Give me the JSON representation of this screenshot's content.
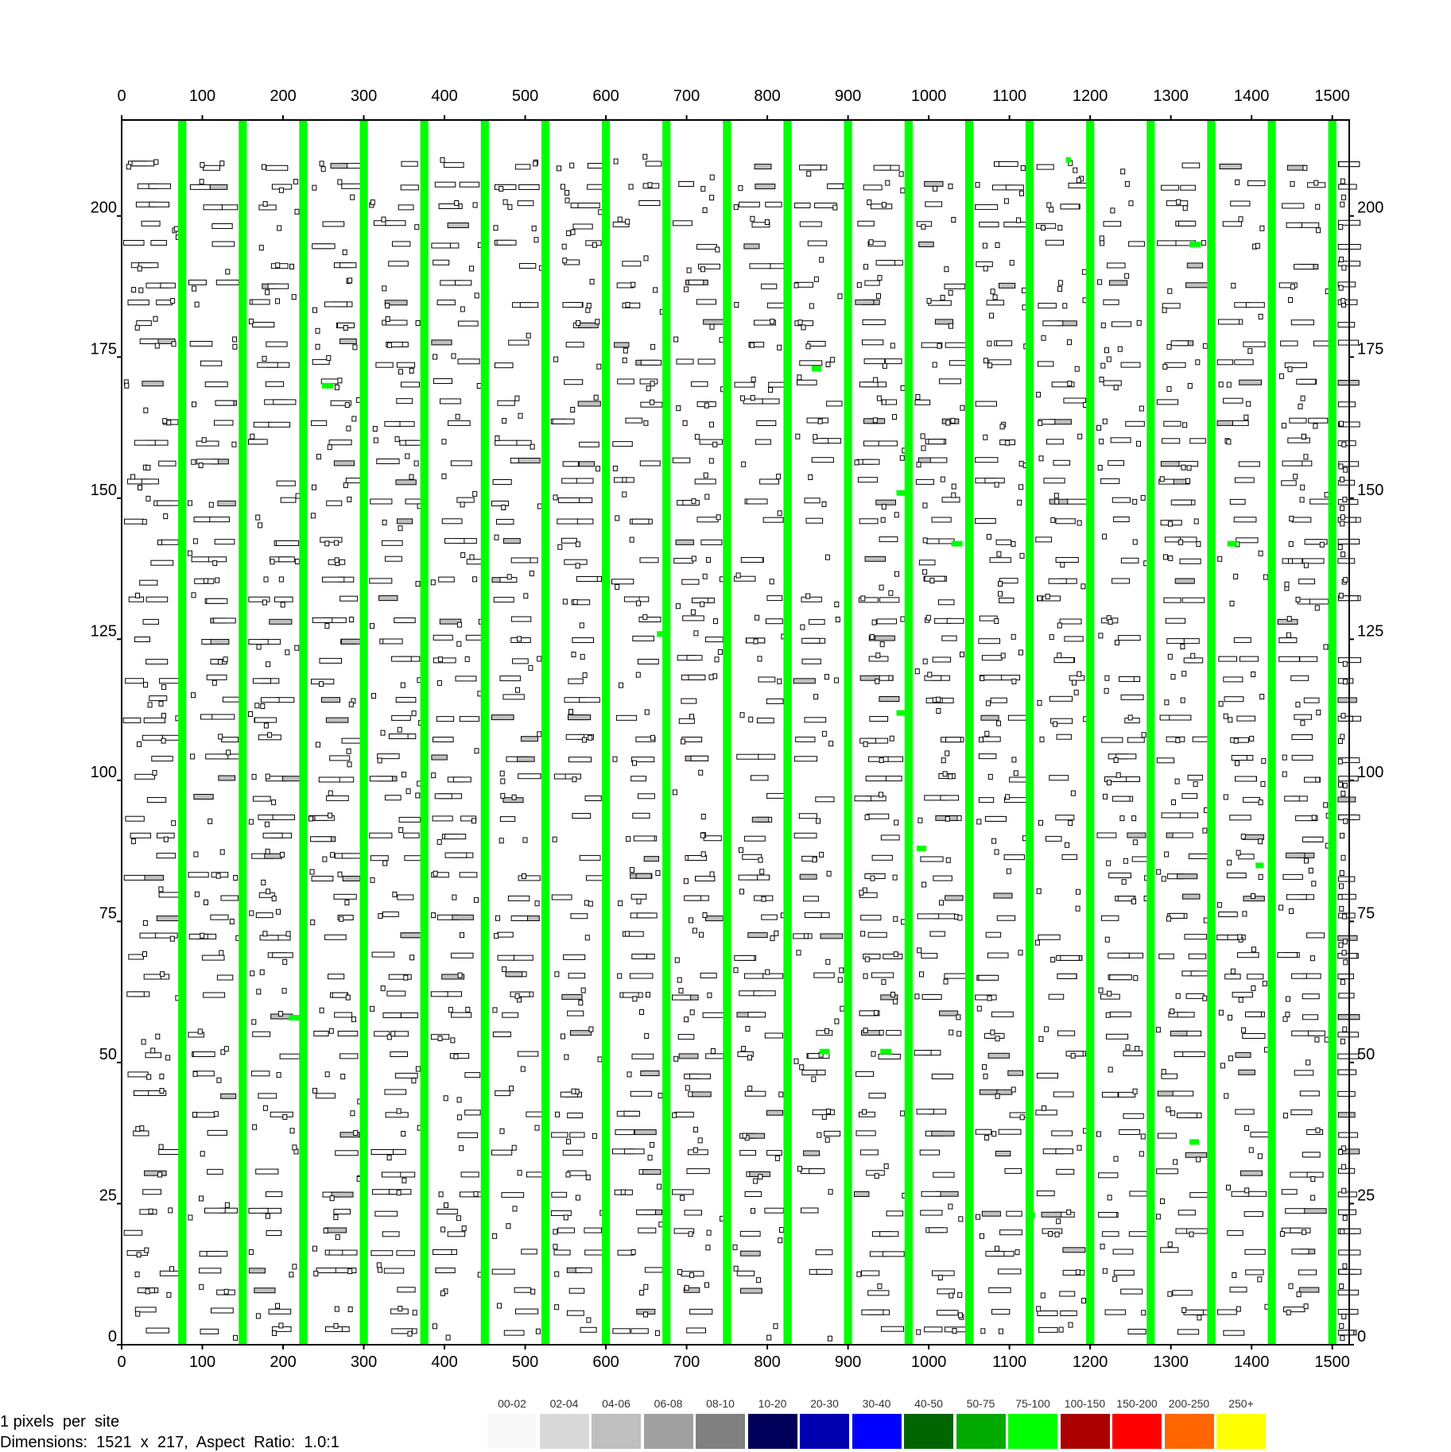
{
  "chart_data": {
    "type": "heatmap",
    "title": "",
    "xlabel": "",
    "ylabel": "",
    "x_range": [
      0,
      1521
    ],
    "y_range": [
      0,
      217
    ],
    "x_ticks": [
      "0",
      "100",
      "200",
      "300",
      "400",
      "500",
      "600",
      "700",
      "800",
      "900",
      "1000",
      "1100",
      "1200",
      "1300",
      "1400",
      "1500"
    ],
    "y_ticks": [
      "0",
      "25",
      "50",
      "75",
      "100",
      "125",
      "150",
      "175",
      "200"
    ],
    "background": "#ffffff",
    "site_outline": "#000000",
    "occupied_fill_gray": "#bfbfbf",
    "column_fill": "#00ff00",
    "column_bands_x": [
      75,
      150,
      225,
      300,
      375,
      450,
      525,
      600,
      675,
      750,
      825,
      900,
      975,
      1050,
      1125,
      1200,
      1275,
      1350,
      1425,
      1500
    ],
    "column_band_width": 10,
    "blocks": [
      {
        "x": 248,
        "y": 170,
        "w": 14,
        "color": "#00ff00"
      },
      {
        "x": 855,
        "y": 173,
        "w": 12,
        "color": "#00ff00"
      },
      {
        "x": 960,
        "y": 151,
        "w": 16,
        "color": "#00ff00"
      },
      {
        "x": 1028,
        "y": 142,
        "w": 14,
        "color": "#00ff00"
      },
      {
        "x": 1323,
        "y": 195,
        "w": 14,
        "color": "#00ff00"
      },
      {
        "x": 1370,
        "y": 142,
        "w": 12,
        "color": "#00ff00"
      },
      {
        "x": 663,
        "y": 126,
        "w": 12,
        "color": "#00ff00"
      },
      {
        "x": 960,
        "y": 112,
        "w": 14,
        "color": "#00ff00"
      },
      {
        "x": 985,
        "y": 88,
        "w": 12,
        "color": "#00ff00"
      },
      {
        "x": 1405,
        "y": 85,
        "w": 10,
        "color": "#00ff00"
      },
      {
        "x": 207,
        "y": 58,
        "w": 14,
        "color": "#00ff00"
      },
      {
        "x": 865,
        "y": 52,
        "w": 12,
        "color": "#00ff00"
      },
      {
        "x": 940,
        "y": 52,
        "w": 14,
        "color": "#00ff00"
      },
      {
        "x": 1120,
        "y": 23,
        "w": 12,
        "color": "#00ff00"
      },
      {
        "x": 1323,
        "y": 36,
        "w": 12,
        "color": "#00ff00"
      },
      {
        "x": 1170,
        "y": 210,
        "w": 6,
        "color": "#00ff00"
      }
    ],
    "legend": [
      {
        "label": "00-02",
        "color": "#f8f8f8"
      },
      {
        "label": "02-04",
        "color": "#d9d9d9"
      },
      {
        "label": "04-06",
        "color": "#bfbfbf"
      },
      {
        "label": "06-08",
        "color": "#a0a0a0"
      },
      {
        "label": "08-10",
        "color": "#808080"
      },
      {
        "label": "10-20",
        "color": "#00005a"
      },
      {
        "label": "20-30",
        "color": "#0000b0"
      },
      {
        "label": "30-40",
        "color": "#0000ff"
      },
      {
        "label": "40-50",
        "color": "#006400"
      },
      {
        "label": "50-75",
        "color": "#00aa00"
      },
      {
        "label": "75-100",
        "color": "#00ff00"
      },
      {
        "label": "100-150",
        "color": "#aa0000"
      },
      {
        "label": "150-200",
        "color": "#ff0000"
      },
      {
        "label": "200-250",
        "color": "#ff6600"
      },
      {
        "label": "250+",
        "color": "#ffff00"
      }
    ]
  },
  "info": {
    "scale_text": "1 pixels  per  site",
    "dimensions_text": "Dimensions:  1521  x  217,  Aspect  Ratio:  1.0:1"
  }
}
